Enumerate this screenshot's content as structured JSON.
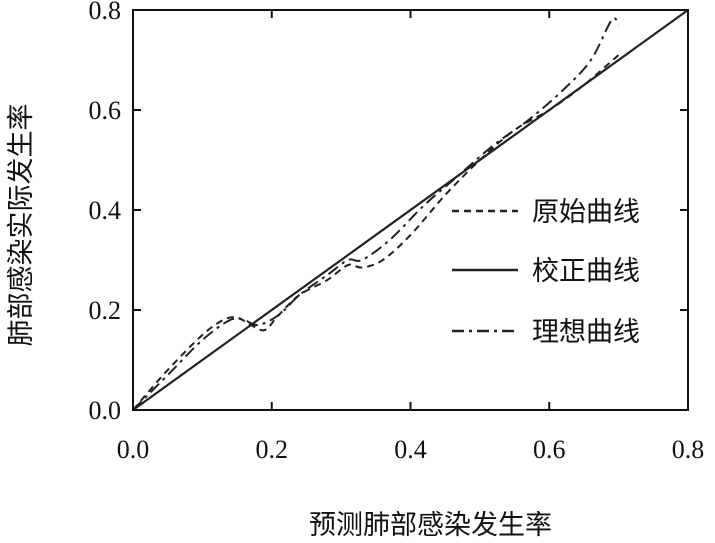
{
  "chart_data": {
    "type": "line",
    "xlabel": "预测肺部感染发生率",
    "ylabel": "肺部感染实际发生率",
    "xlim": [
      0,
      0.8
    ],
    "ylim": [
      0,
      0.8
    ],
    "xticks": [
      "0.0",
      "0.2",
      "0.4",
      "0.6",
      "0.8"
    ],
    "yticks": [
      "0.0",
      "0.2",
      "0.4",
      "0.6",
      "0.8"
    ],
    "grid": false,
    "legend_position": "right",
    "series": [
      {
        "name": "原始曲线",
        "style": "dashed",
        "color": "#222222",
        "x": [
          0.0,
          0.05,
          0.1,
          0.13,
          0.15,
          0.17,
          0.19,
          0.21,
          0.24,
          0.28,
          0.31,
          0.33,
          0.36,
          0.4,
          0.45,
          0.5,
          0.55,
          0.6,
          0.65,
          0.7
        ],
        "y": [
          0.0,
          0.08,
          0.15,
          0.18,
          0.185,
          0.17,
          0.16,
          0.19,
          0.23,
          0.26,
          0.29,
          0.285,
          0.3,
          0.35,
          0.43,
          0.5,
          0.56,
          0.6,
          0.65,
          0.71
        ]
      },
      {
        "name": "校正曲线",
        "style": "solid",
        "color": "#222222",
        "x": [
          0.0,
          0.8
        ],
        "y": [
          0.0,
          0.8
        ]
      },
      {
        "name": "理想曲线",
        "style": "dashdot",
        "color": "#222222",
        "x": [
          0.0,
          0.05,
          0.1,
          0.14,
          0.16,
          0.18,
          0.21,
          0.24,
          0.28,
          0.31,
          0.33,
          0.37,
          0.42,
          0.47,
          0.52,
          0.57,
          0.62,
          0.66,
          0.69,
          0.7
        ],
        "y": [
          0.0,
          0.07,
          0.14,
          0.18,
          0.18,
          0.17,
          0.19,
          0.23,
          0.27,
          0.3,
          0.3,
          0.34,
          0.41,
          0.47,
          0.53,
          0.58,
          0.64,
          0.7,
          0.78,
          0.77
        ]
      }
    ]
  }
}
